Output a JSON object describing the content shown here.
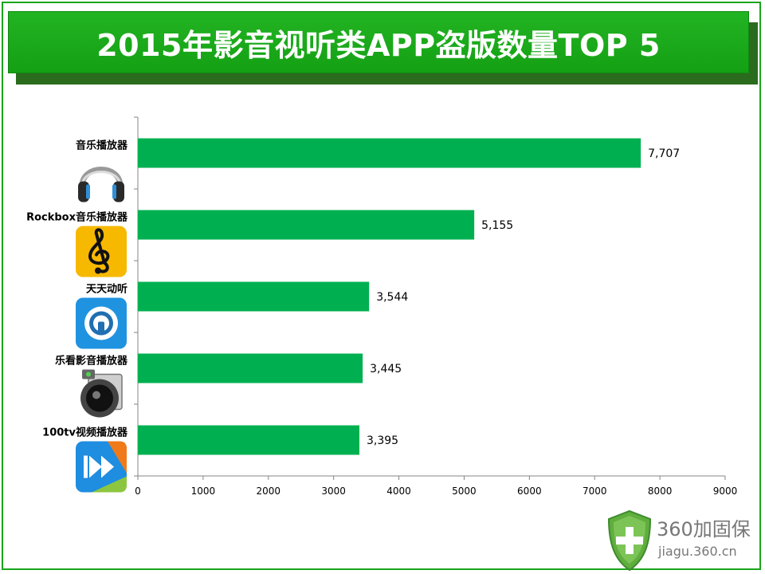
{
  "chart_data": {
    "type": "bar",
    "orientation": "horizontal",
    "title": "2015年影音视听类APP盗版数量TOP 5",
    "categories": [
      "音乐播放器",
      "Rockbox音乐播放器",
      "天天动听",
      "乐看影音播放器",
      "100tv视频播放器"
    ],
    "values": [
      7707,
      5155,
      3544,
      3445,
      3395
    ],
    "value_labels": [
      "7,707",
      "5,155",
      "3,544",
      "3,445",
      "3,395"
    ],
    "xlim": [
      0,
      9000
    ],
    "xticks": [
      "0",
      "1000",
      "2000",
      "3000",
      "4000",
      "5000",
      "6000",
      "7000",
      "8000",
      "9000"
    ],
    "grid": false,
    "bar_color": "#00b050",
    "icons": [
      "headphones-icon",
      "treble-clef-icon",
      "ttpod-icon",
      "camera-speaker-icon",
      "fast-forward-icon"
    ]
  },
  "brand": {
    "name": "360加固保",
    "url": "jiagu.360.cn",
    "icon": "shield-plus-icon",
    "color": "#52a83c"
  }
}
